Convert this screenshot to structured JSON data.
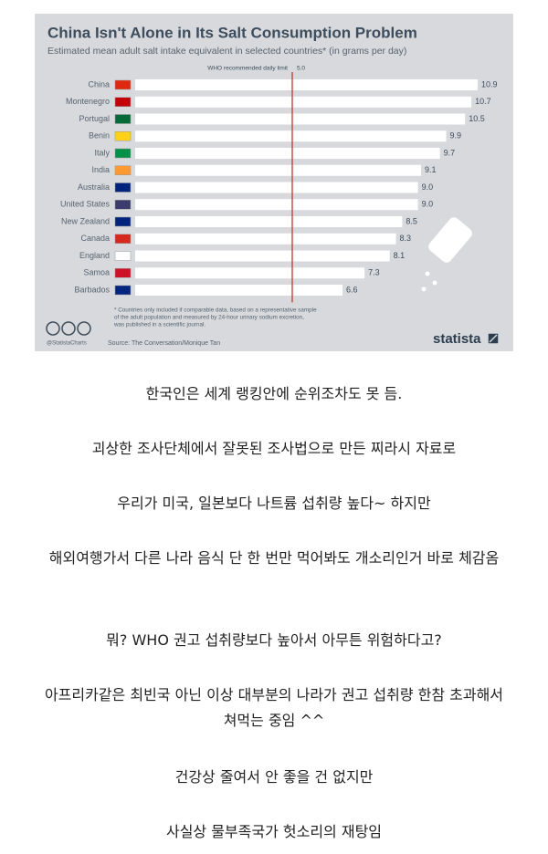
{
  "chart_data": {
    "type": "bar",
    "orientation": "horizontal",
    "title": "China Isn't Alone in Its Salt Consumption Problem",
    "subtitle": "Estimated mean adult salt intake equivalent in selected countries* (in grams per day)",
    "categories": [
      "China",
      "Montenegro",
      "Portugal",
      "Benin",
      "Italy",
      "India",
      "Australia",
      "United States",
      "New Zealand",
      "Canada",
      "England",
      "Samoa",
      "Barbados"
    ],
    "values": [
      10.9,
      10.7,
      10.5,
      9.9,
      9.7,
      9.1,
      9.0,
      9.0,
      8.5,
      8.3,
      8.1,
      7.3,
      6.6
    ],
    "value_labels": [
      "10.9",
      "10.7",
      "10.5",
      "9.9",
      "9.7",
      "9.1",
      "9.0",
      "9.0",
      "8.5",
      "8.3",
      "8.1",
      "7.3",
      "6.6"
    ],
    "color": "#ffffff",
    "xlim": [
      0,
      11
    ],
    "reference_line": {
      "label": "WHO recommended daily limit",
      "value": 5.0,
      "value_label": "5.0",
      "color": "#c0392b"
    },
    "footnote": [
      "* Countries only included if comparable data, based on a representative sample",
      "of the adult population and measured by 24-hour urinary sodium excretion,",
      "was published in a scientific journal."
    ],
    "handle": "@StatistaCharts",
    "source": "Source: The Conversation/Monique Tan",
    "brand": "statista"
  },
  "paragraphs": [
    "한국인은 세계 랭킹안에 순위조차도 못 듬.",
    "괴상한 조사단체에서 잘못된 조사법으로 만든 찌라시 자료로",
    "우리가 미국, 일본보다 나트륨 섭취량 높다~ 하지만",
    "해외여행가서 다른 나라 음식 단 한 번만 먹어봐도 개소리인거 바로 체감옴",
    "뭐? WHO 권고 섭취량보다 높아서 아무튼 위험하다고?",
    "아프리카같은 최빈국 아닌 이상 대부분의 나라가 권고 섭취량 한참 초과해서 쳐먹는 중임 ^^",
    "건강상 줄여서 안 좋을 건 없지만",
    "사실상 물부족국가 헛소리의 재탕임"
  ]
}
